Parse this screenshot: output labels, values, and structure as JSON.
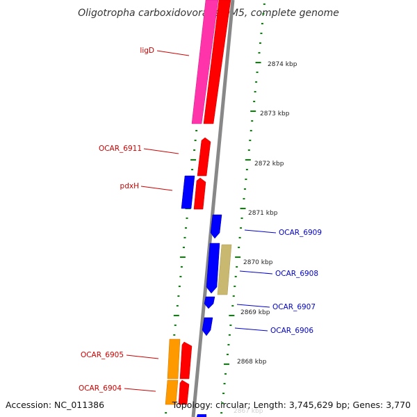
{
  "title": "Oligotropha carboxidovorans OM5, complete genome",
  "footer": {
    "accession": "Accession: NC_011386",
    "summary": "Topology: circular; Length: 3,745,629 bp; Genes: 3,770"
  },
  "faint_bottom_label": "2867 kbp",
  "kbp_labels": [
    "2874 kbp",
    "2873 kbp",
    "2872 kbp",
    "2871 kbp",
    "2870 kbp",
    "2869 kbp",
    "2868 kbp"
  ],
  "gene_labels_left": [
    "ligD",
    "OCAR_6911",
    "pdxH",
    "OCAR_6905",
    "OCAR_6904"
  ],
  "gene_labels_right": [
    "OCAR_6909",
    "OCAR_6908",
    "OCAR_6907",
    "OCAR_6906"
  ],
  "colors": {
    "forward_label": "#cc0000",
    "reverse_label": "#0000cc",
    "red_gene": "#ff0000",
    "pink_gene": "#ff33aa",
    "blue_gene": "#0000ff",
    "khaki_gene": "#c8b870",
    "orange_gene": "#ff9900",
    "backbone": "#888888",
    "tick": "#008800"
  }
}
